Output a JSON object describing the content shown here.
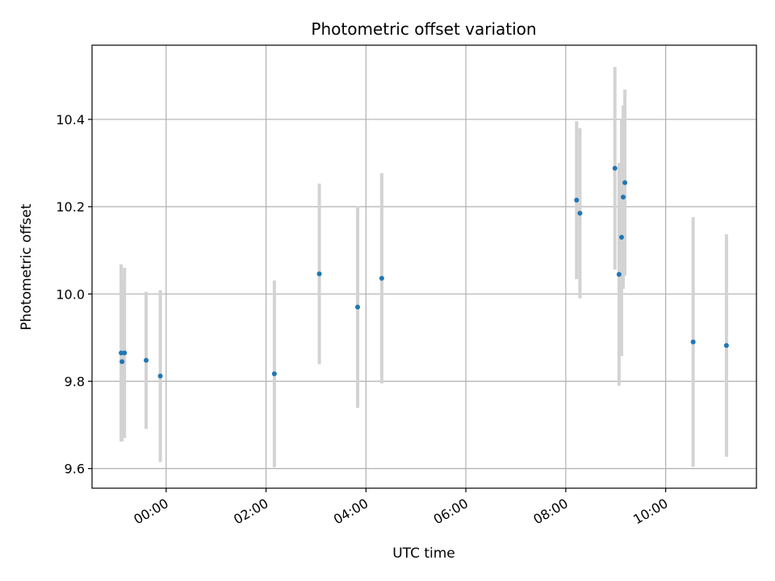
{
  "chart_data": {
    "type": "scatter",
    "title": "Photometric offset variation",
    "xlabel": "UTC time",
    "ylabel": "Photometric offset",
    "x_is_time": true,
    "xlim": [
      "2023-01-01T22:31:00",
      "2023-01-02T11:49:00"
    ],
    "ylim": [
      9.555,
      10.57
    ],
    "x_ticks": [
      {
        "value": "2023-01-02T00:00:00",
        "label": "00:00"
      },
      {
        "value": "2023-01-02T02:00:00",
        "label": "02:00"
      },
      {
        "value": "2023-01-02T04:00:00",
        "label": "04:00"
      },
      {
        "value": "2023-01-02T06:00:00",
        "label": "06:00"
      },
      {
        "value": "2023-01-02T08:00:00",
        "label": "08:00"
      },
      {
        "value": "2023-01-02T10:00:00",
        "label": "10:00"
      }
    ],
    "y_ticks": [
      9.6,
      9.8,
      10.0,
      10.2,
      10.4
    ],
    "y_tick_labels": [
      "9.6",
      "9.8",
      "10.0",
      "10.2",
      "10.4"
    ],
    "grid": true,
    "point_color": "#1f77b4",
    "errorbar_color": "#d3d3d3",
    "points": [
      {
        "x": "2023-01-01T23:06:00",
        "y": 9.865,
        "err": 0.203
      },
      {
        "x": "2023-01-01T23:07:00",
        "y": 9.845,
        "err": 0.183
      },
      {
        "x": "2023-01-01T23:10:00",
        "y": 9.865,
        "err": 0.195
      },
      {
        "x": "2023-01-01T23:36:00",
        "y": 9.848,
        "err": 0.157
      },
      {
        "x": "2023-01-01T23:53:00",
        "y": 9.812,
        "err": 0.197
      },
      {
        "x": "2023-01-02T02:10:00",
        "y": 9.817,
        "err": 0.214
      },
      {
        "x": "2023-01-02T03:04:00",
        "y": 10.046,
        "err": 0.207
      },
      {
        "x": "2023-01-02T03:50:00",
        "y": 9.97,
        "err": 0.231
      },
      {
        "x": "2023-01-02T04:19:00",
        "y": 10.036,
        "err": 0.241
      },
      {
        "x": "2023-01-02T08:13:00",
        "y": 10.215,
        "err": 0.181
      },
      {
        "x": "2023-01-02T08:17:00",
        "y": 10.185,
        "err": 0.195
      },
      {
        "x": "2023-01-02T08:59:00",
        "y": 10.288,
        "err": 0.232
      },
      {
        "x": "2023-01-02T09:04:00",
        "y": 10.045,
        "err": 0.255
      },
      {
        "x": "2023-01-02T09:07:00",
        "y": 10.13,
        "err": 0.272
      },
      {
        "x": "2023-01-02T09:09:00",
        "y": 10.222,
        "err": 0.21
      },
      {
        "x": "2023-01-02T09:11:00",
        "y": 10.255,
        "err": 0.213
      },
      {
        "x": "2023-01-02T10:33:00",
        "y": 9.89,
        "err": 0.286
      },
      {
        "x": "2023-01-02T11:13:00",
        "y": 9.882,
        "err": 0.255
      }
    ]
  }
}
